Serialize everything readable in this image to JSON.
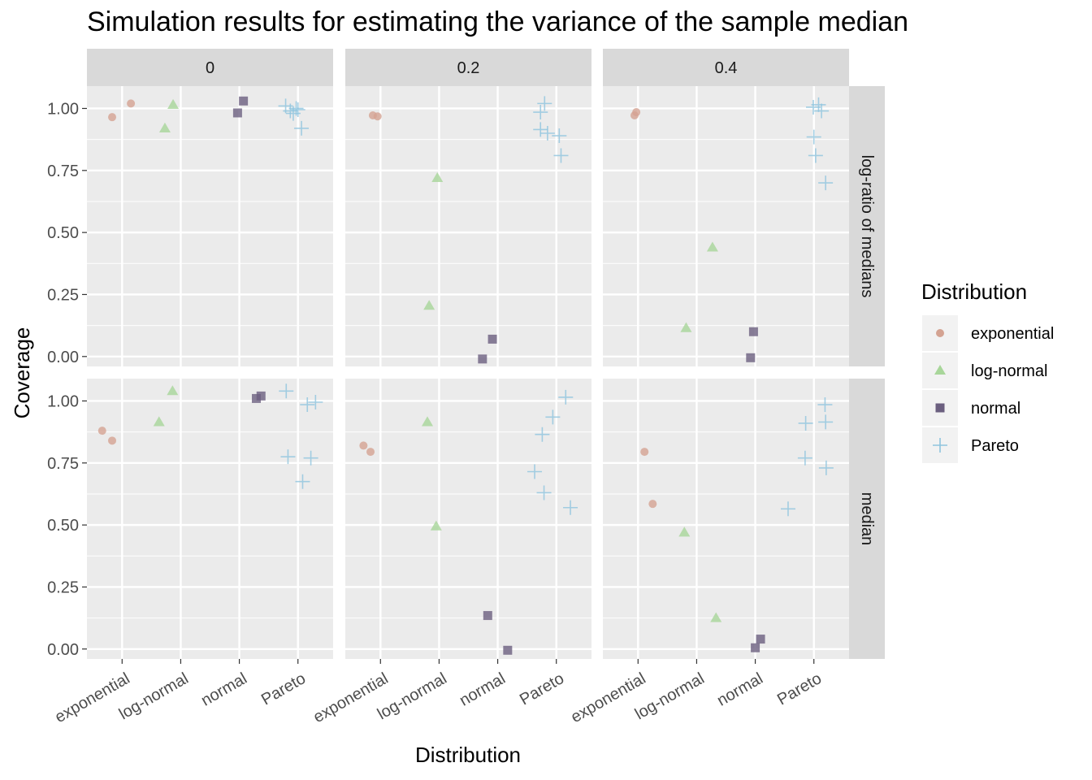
{
  "chart_data": {
    "type": "scatter",
    "title": "Simulation results for estimating the variance of the sample median",
    "xlabel": "Distribution",
    "ylabel": "Coverage",
    "categories": [
      "exponential",
      "log-normal",
      "normal",
      "Pareto"
    ],
    "col_facets": [
      "0",
      "0.2",
      "0.4"
    ],
    "row_facets": [
      "log-ratio of medians",
      "median"
    ],
    "y_ticks": [
      0,
      0.25,
      0.5,
      0.75,
      1
    ],
    "y_tick_labels": [
      "0.00",
      "0.25",
      "0.50",
      "0.75",
      "1.00"
    ],
    "ylim": [
      -0.04,
      1.09
    ],
    "grid": true,
    "legend": {
      "title": "Distribution",
      "position": "right",
      "entries": [
        {
          "label": "exponential",
          "shape": "circle",
          "color": "#D4A392"
        },
        {
          "label": "log-normal",
          "shape": "triangle",
          "color": "#A8D69A"
        },
        {
          "label": "normal",
          "shape": "square",
          "color": "#6B5F7F"
        },
        {
          "label": "Pareto",
          "shape": "plus",
          "color": "#8FC4DE"
        }
      ]
    },
    "panels": [
      {
        "row": "log-ratio of medians",
        "col": "0",
        "points": {
          "exponential": [
            [
              0.83,
              0.965
            ],
            [
              1.15,
              1.02
            ]
          ],
          "log-normal": [
            [
              1.73,
              0.92
            ],
            [
              1.87,
              1.015
            ]
          ],
          "normal": [
            [
              2.97,
              0.982
            ],
            [
              3.07,
              1.03
            ]
          ],
          "Pareto": [
            [
              3.79,
              1.01
            ],
            [
              3.87,
              0.99
            ],
            [
              3.97,
              1.0
            ],
            [
              4.06,
              0.92
            ],
            [
              3.92,
              0.98
            ],
            [
              4.0,
              0.995
            ]
          ]
        }
      },
      {
        "row": "log-ratio of medians",
        "col": "0.2",
        "points": {
          "exponential": [
            [
              0.87,
              0.972
            ],
            [
              0.95,
              0.968
            ]
          ],
          "log-normal": [
            [
              1.83,
              0.205
            ],
            [
              1.97,
              0.72
            ]
          ],
          "normal": [
            [
              2.74,
              -0.01
            ],
            [
              2.91,
              0.07
            ]
          ],
          "Pareto": [
            [
              3.73,
              0.985
            ],
            [
              3.8,
              1.02
            ],
            [
              3.73,
              0.915
            ],
            [
              3.85,
              0.9
            ],
            [
              4.05,
              0.89
            ],
            [
              4.08,
              0.81
            ]
          ]
        }
      },
      {
        "row": "log-ratio of medians",
        "col": "0.4",
        "points": {
          "exponential": [
            [
              0.94,
              0.972
            ],
            [
              0.97,
              0.985
            ]
          ],
          "log-normal": [
            [
              1.82,
              0.115
            ],
            [
              2.27,
              0.44
            ]
          ],
          "normal": [
            [
              2.92,
              -0.005
            ],
            [
              2.97,
              0.1
            ]
          ],
          "Pareto": [
            [
              3.99,
              1.005
            ],
            [
              4.08,
              1.015
            ],
            [
              4.13,
              0.99
            ],
            [
              4.0,
              0.885
            ],
            [
              4.03,
              0.81
            ],
            [
              4.2,
              0.7
            ]
          ]
        }
      },
      {
        "row": "median",
        "col": "0",
        "points": {
          "exponential": [
            [
              0.66,
              0.88
            ],
            [
              0.83,
              0.84
            ]
          ],
          "log-normal": [
            [
              1.63,
              0.915
            ],
            [
              1.86,
              1.04
            ]
          ],
          "normal": [
            [
              3.29,
              1.01
            ],
            [
              3.37,
              1.02
            ]
          ],
          "Pareto": [
            [
              3.8,
              1.04
            ],
            [
              4.16,
              0.985
            ],
            [
              4.3,
              0.995
            ],
            [
              3.83,
              0.775
            ],
            [
              4.22,
              0.77
            ],
            [
              4.08,
              0.675
            ]
          ]
        }
      },
      {
        "row": "median",
        "col": "0.2",
        "points": {
          "exponential": [
            [
              0.71,
              0.82
            ],
            [
              0.83,
              0.795
            ]
          ],
          "log-normal": [
            [
              1.8,
              0.915
            ],
            [
              1.95,
              0.495
            ]
          ],
          "normal": [
            [
              2.83,
              0.135
            ],
            [
              3.17,
              -0.005
            ]
          ],
          "Pareto": [
            [
              3.63,
              0.715
            ],
            [
              3.76,
              0.865
            ],
            [
              3.79,
              0.63
            ],
            [
              3.94,
              0.935
            ],
            [
              4.16,
              1.015
            ],
            [
              4.24,
              0.57
            ]
          ]
        }
      },
      {
        "row": "median",
        "col": "0.4",
        "points": {
          "exponential": [
            [
              1.11,
              0.795
            ],
            [
              1.25,
              0.585
            ]
          ],
          "log-normal": [
            [
              1.79,
              0.47
            ],
            [
              2.33,
              0.125
            ]
          ],
          "normal": [
            [
              3.0,
              0.005
            ],
            [
              3.09,
              0.04
            ]
          ],
          "Pareto": [
            [
              3.56,
              0.565
            ],
            [
              3.85,
              0.77
            ],
            [
              3.86,
              0.91
            ],
            [
              4.19,
              0.985
            ],
            [
              4.2,
              0.915
            ],
            [
              4.21,
              0.73
            ]
          ]
        }
      }
    ]
  }
}
